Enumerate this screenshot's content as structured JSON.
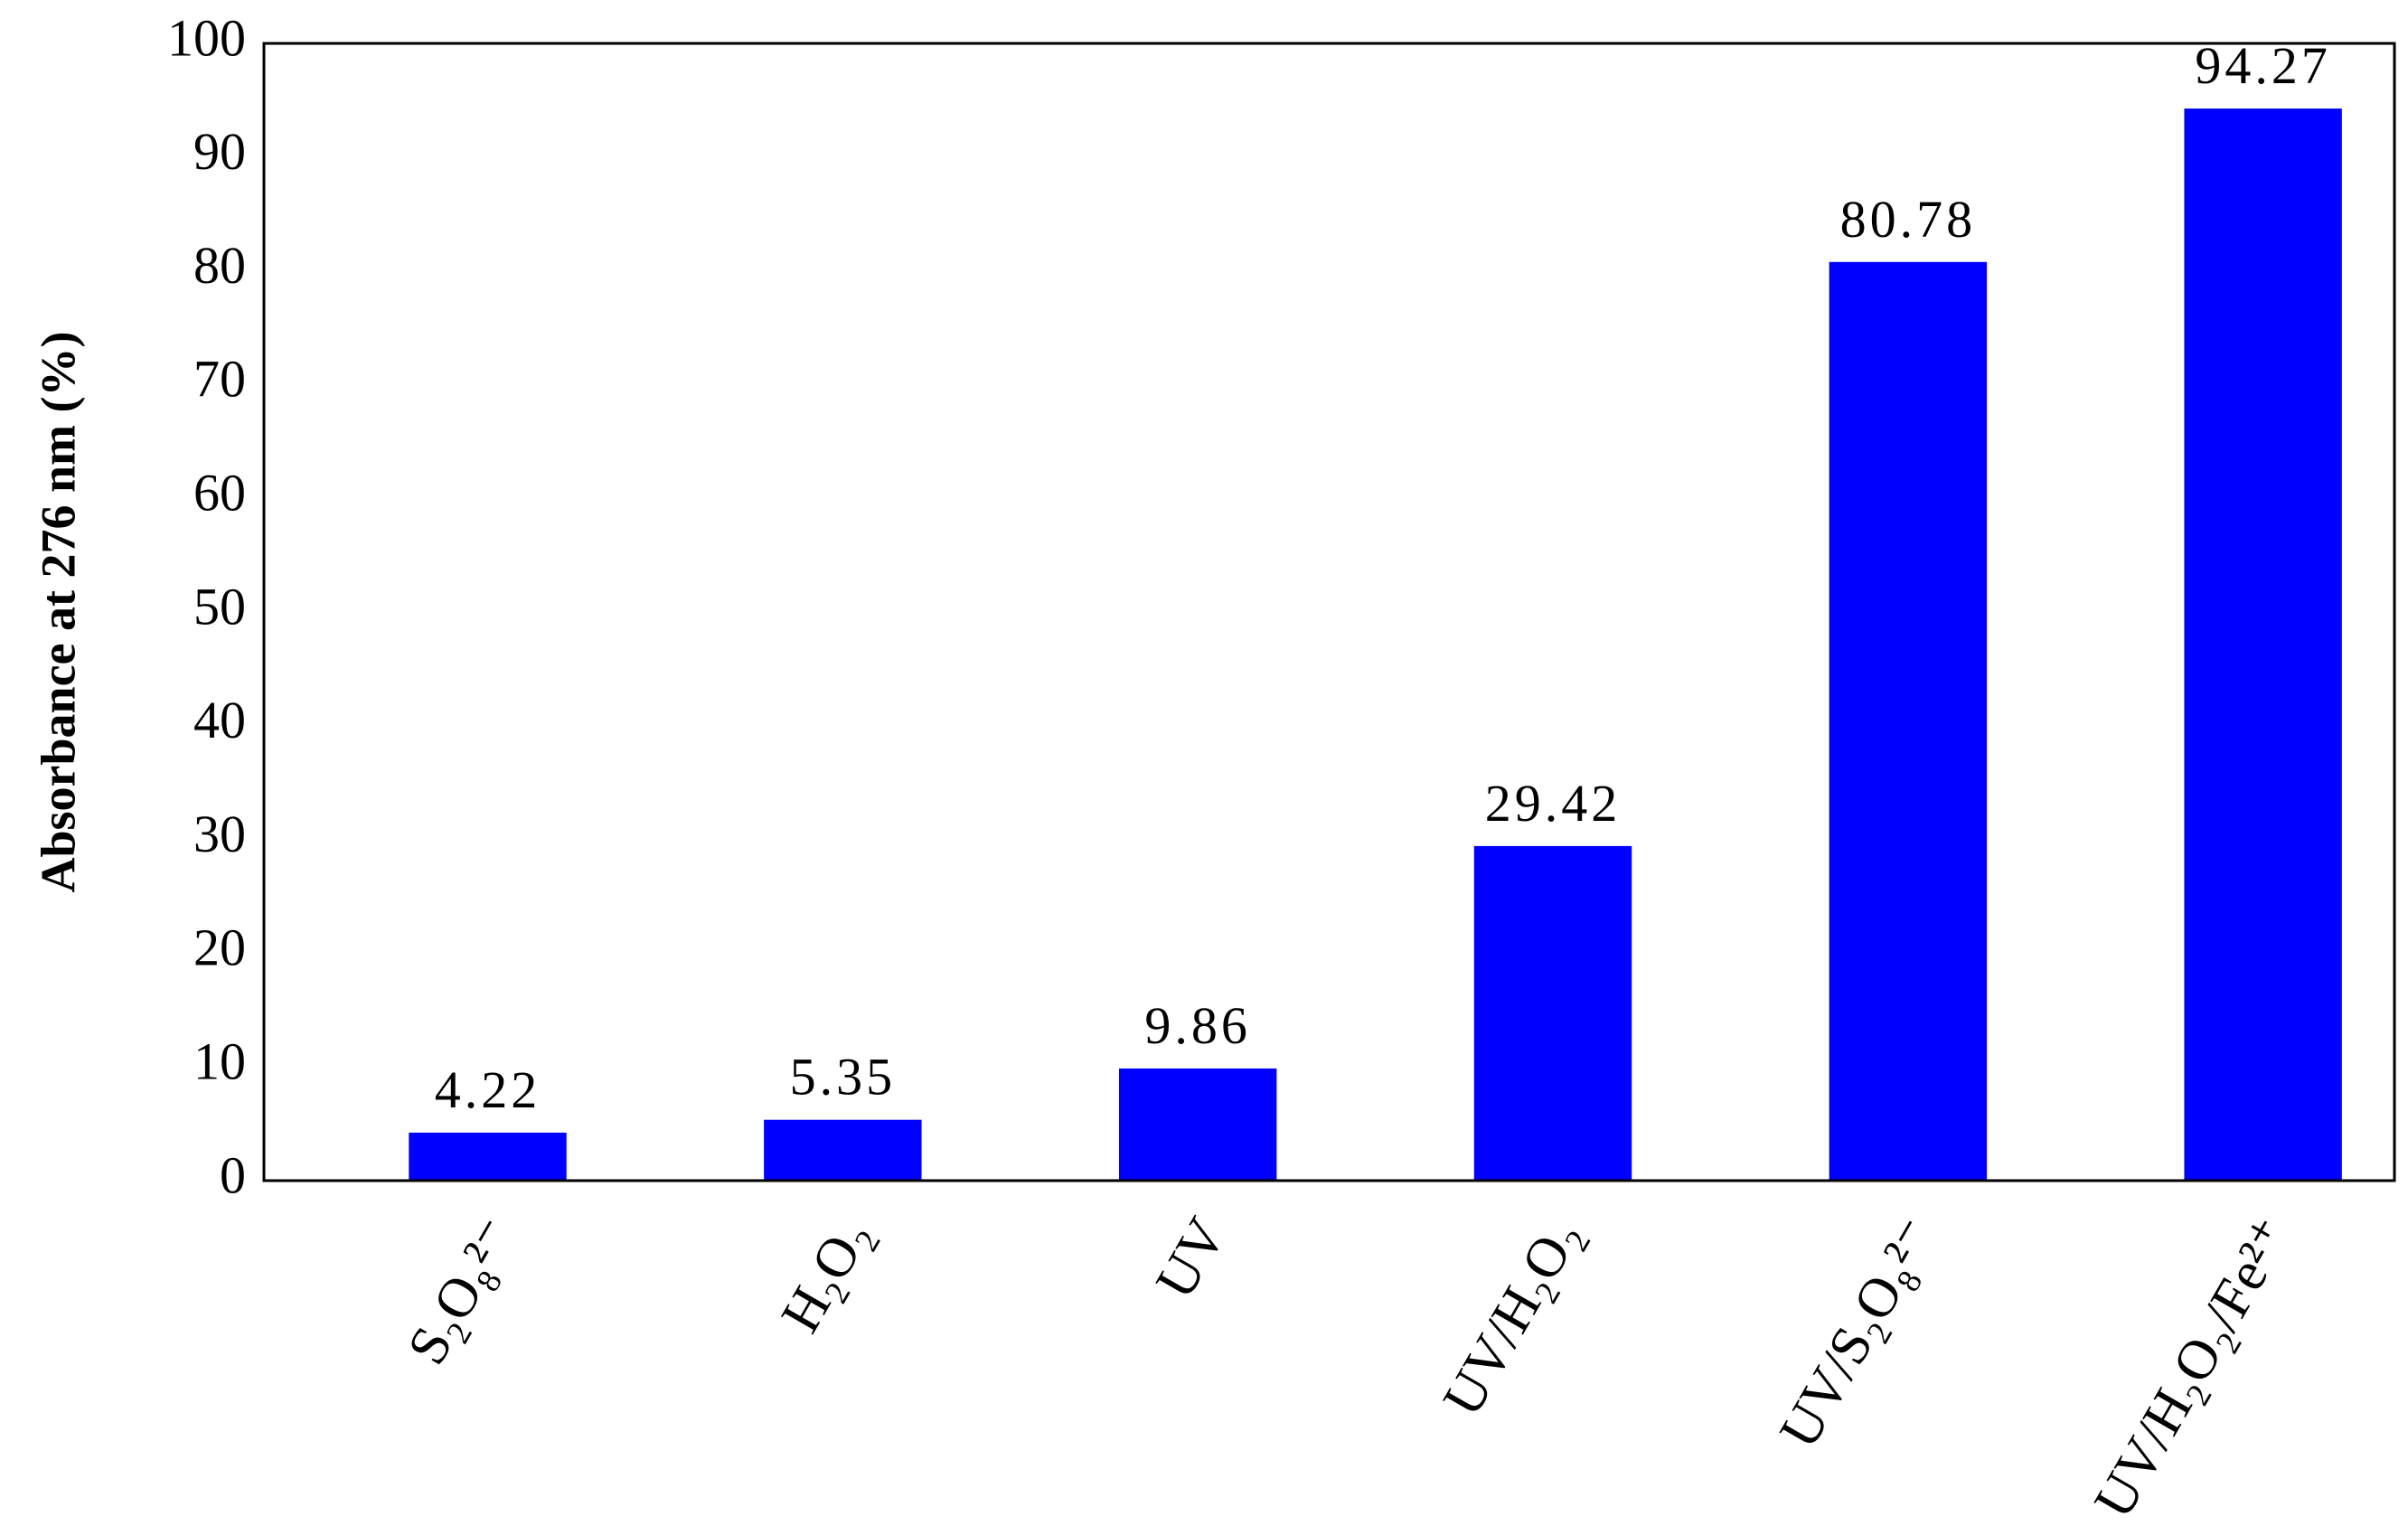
{
  "chart_data": {
    "type": "bar",
    "y_label": "Absorbance at 276 nm (%)",
    "categories": [
      "S₂O₈²⁻",
      "H₂O₂",
      "UV",
      "UV/H₂O₂",
      "UV/S₂O₈²⁻",
      "UV/H₂O₂/Fe²⁺"
    ],
    "values": [
      4.22,
      5.35,
      9.86,
      29.42,
      80.78,
      94.27
    ],
    "color": "#0000ff",
    "ylim": [
      0,
      100
    ],
    "yticks": [
      0,
      10,
      20,
      30,
      40,
      50,
      60,
      70,
      80,
      90,
      100
    ],
    "grid": false,
    "data_labels": true
  }
}
